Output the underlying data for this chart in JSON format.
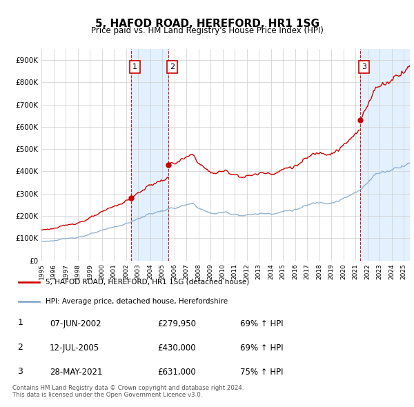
{
  "title": "5, HAFOD ROAD, HEREFORD, HR1 1SG",
  "subtitle": "Price paid vs. HM Land Registry's House Price Index (HPI)",
  "sales": [
    {
      "date_num": 2002.44,
      "price": 279950,
      "label": "1",
      "date_str": "07-JUN-2002",
      "hpi_pct": "69%"
    },
    {
      "date_num": 2005.53,
      "price": 430000,
      "label": "2",
      "date_str": "12-JUL-2005",
      "hpi_pct": "69%"
    },
    {
      "date_num": 2021.41,
      "price": 631000,
      "label": "3",
      "date_str": "28-MAY-2021",
      "hpi_pct": "75%"
    }
  ],
  "legend_property": "5, HAFOD ROAD, HEREFORD, HR1 1SG (detached house)",
  "legend_hpi": "HPI: Average price, detached house, Herefordshire",
  "footer": "Contains HM Land Registry data © Crown copyright and database right 2024.\nThis data is licensed under the Open Government Licence v3.0.",
  "ylim": [
    0,
    950000
  ],
  "xmin": 1995.0,
  "xmax": 2025.5,
  "property_color": "#cc0000",
  "hpi_color": "#88aacc",
  "shade_color": "#ddeeff",
  "grid_color": "#cccccc",
  "background_color": "#ffffff"
}
